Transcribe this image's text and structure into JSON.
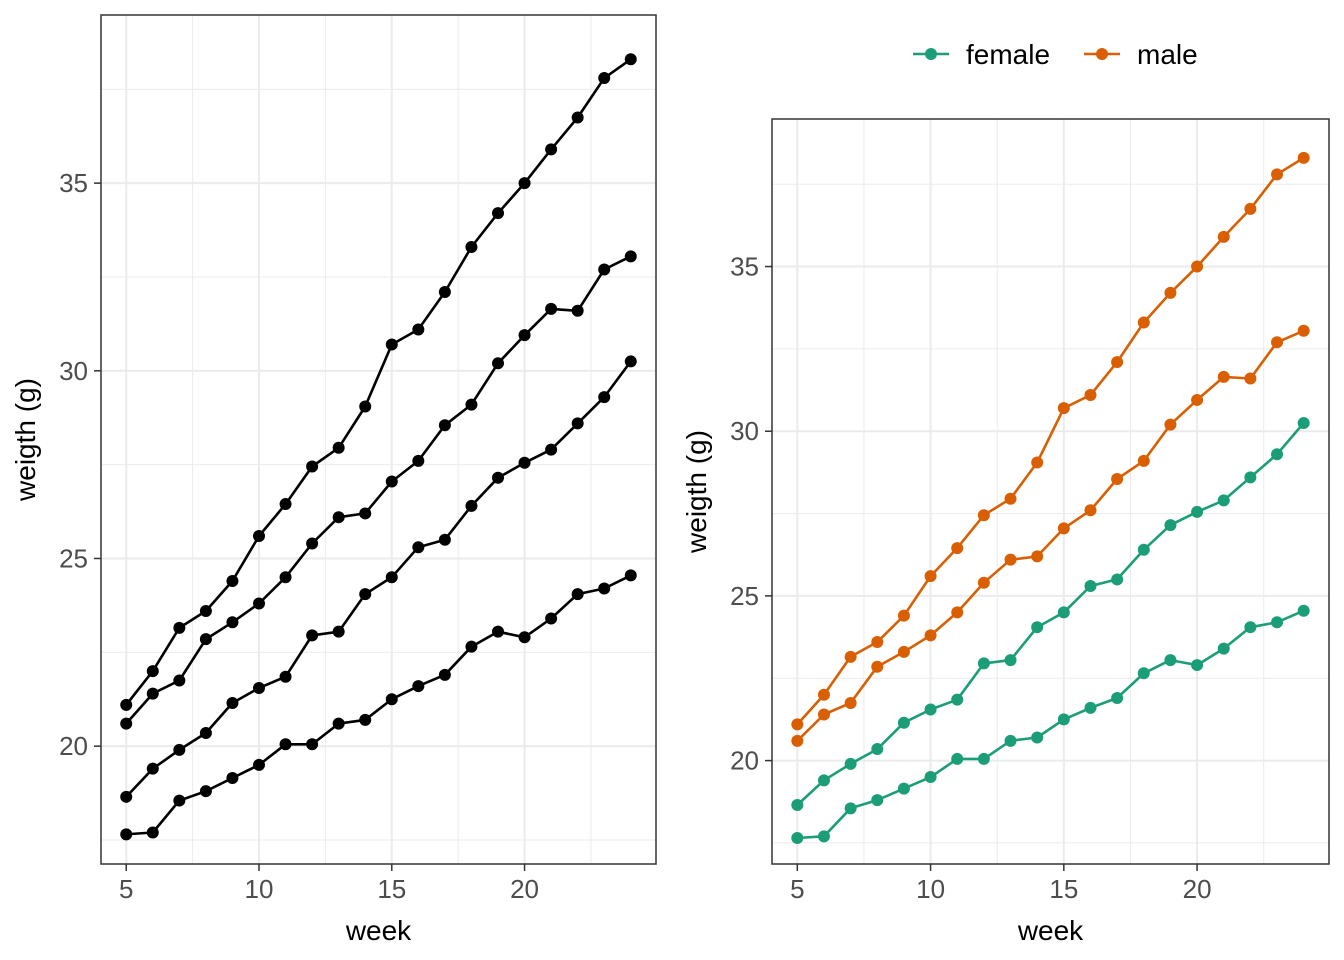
{
  "colors": {
    "female": "#1b9e77",
    "male": "#d95f02",
    "single": "#000000",
    "grid": "#ebebeb",
    "panel_border": "#333333"
  },
  "chart_data": [
    {
      "type": "line",
      "xlabel": "week",
      "ylabel": "weigth (g)",
      "xlim": [
        4.05,
        24.95
      ],
      "ylim": [
        16.86,
        39.48
      ],
      "xticks": [
        5,
        10,
        15,
        20
      ],
      "yticks": [
        20,
        25,
        30,
        35
      ],
      "grid": true,
      "legend": "none",
      "x": [
        5,
        6,
        7,
        8,
        9,
        10,
        11,
        12,
        13,
        14,
        15,
        16,
        17,
        18,
        19,
        20,
        21,
        22,
        23,
        24
      ],
      "series": [
        {
          "group": "male",
          "values": [
            21.1,
            22.0,
            23.15,
            23.6,
            24.4,
            25.6,
            26.45,
            27.45,
            27.95,
            29.05,
            30.7,
            31.1,
            32.1,
            33.3,
            34.2,
            35.0,
            35.9,
            36.75,
            37.8,
            38.3
          ]
        },
        {
          "group": "male",
          "values": [
            20.6,
            21.4,
            21.75,
            22.85,
            23.3,
            23.8,
            24.5,
            25.4,
            26.1,
            26.2,
            27.05,
            27.6,
            28.55,
            29.1,
            30.2,
            30.95,
            31.65,
            31.6,
            32.7,
            33.05
          ]
        },
        {
          "group": "female",
          "values": [
            18.65,
            19.4,
            19.9,
            20.35,
            21.15,
            21.55,
            21.85,
            22.95,
            23.05,
            24.05,
            24.5,
            25.3,
            25.5,
            26.4,
            27.15,
            27.55,
            27.9,
            28.6,
            29.3,
            30.25
          ]
        },
        {
          "group": "female",
          "values": [
            17.65,
            17.7,
            18.55,
            18.8,
            19.15,
            19.5,
            20.05,
            20.05,
            20.6,
            20.7,
            21.25,
            21.6,
            21.9,
            22.65,
            23.05,
            22.9,
            23.4,
            24.05,
            24.2,
            24.55
          ]
        }
      ]
    },
    {
      "type": "line",
      "xlabel": "week",
      "ylabel": "weigth (g)",
      "xlim": [
        4.05,
        24.95
      ],
      "ylim": [
        16.86,
        39.48
      ],
      "xticks": [
        5,
        10,
        15,
        20
      ],
      "yticks": [
        20,
        25,
        30,
        35
      ],
      "grid": true,
      "legend": "top",
      "legend_entries": [
        "female",
        "male"
      ],
      "x": [
        5,
        6,
        7,
        8,
        9,
        10,
        11,
        12,
        13,
        14,
        15,
        16,
        17,
        18,
        19,
        20,
        21,
        22,
        23,
        24
      ],
      "series": [
        {
          "group": "male",
          "values": [
            21.1,
            22.0,
            23.15,
            23.6,
            24.4,
            25.6,
            26.45,
            27.45,
            27.95,
            29.05,
            30.7,
            31.1,
            32.1,
            33.3,
            34.2,
            35.0,
            35.9,
            36.75,
            37.8,
            38.3
          ]
        },
        {
          "group": "male",
          "values": [
            20.6,
            21.4,
            21.75,
            22.85,
            23.3,
            23.8,
            24.5,
            25.4,
            26.1,
            26.2,
            27.05,
            27.6,
            28.55,
            29.1,
            30.2,
            30.95,
            31.65,
            31.6,
            32.7,
            33.05
          ]
        },
        {
          "group": "female",
          "values": [
            18.65,
            19.4,
            19.9,
            20.35,
            21.15,
            21.55,
            21.85,
            22.95,
            23.05,
            24.05,
            24.5,
            25.3,
            25.5,
            26.4,
            27.15,
            27.55,
            27.9,
            28.6,
            29.3,
            30.25
          ]
        },
        {
          "group": "female",
          "values": [
            17.65,
            17.7,
            18.55,
            18.8,
            19.15,
            19.5,
            20.05,
            20.05,
            20.6,
            20.7,
            21.25,
            21.6,
            21.9,
            22.65,
            23.05,
            22.9,
            23.4,
            24.05,
            24.2,
            24.55
          ]
        }
      ]
    }
  ]
}
